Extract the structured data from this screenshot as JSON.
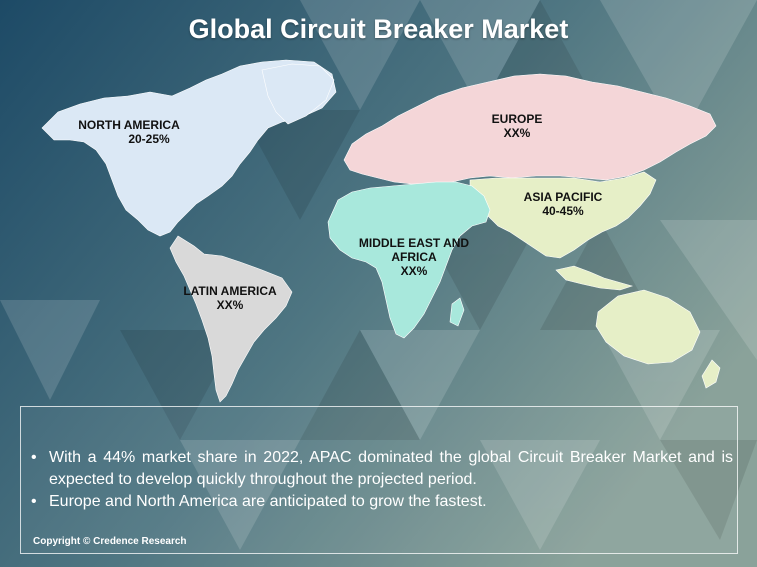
{
  "title": "Global Circuit Breaker Market",
  "colors": {
    "background_dark": "#1d4a66",
    "background_mid": "#4f7682",
    "background_light": "#8aa29a",
    "north_america": "#dbe8f5",
    "europe": "#f4d6d8",
    "asia_pacific": "#e6efc7",
    "middle_east_africa": "#a8e8dc",
    "latin_america": "#d9d9d9"
  },
  "regions": {
    "north_america": {
      "name": "NORTH AMERICA",
      "share": "20-25%"
    },
    "europe": {
      "name": "EUROPE",
      "share": "XX%"
    },
    "asia_pacific": {
      "name": "ASIA PACIFIC",
      "share": "40-45%"
    },
    "middle_east_africa": {
      "name_line1": "MIDDLE EAST AND",
      "name_line2": "AFRICA",
      "share": "XX%"
    },
    "latin_america": {
      "name": "LATIN AMERICA",
      "share": "XX%"
    }
  },
  "bullets": [
    {
      "symbol": "•",
      "text": "With a 44% market share in 2022, APAC dominated the global Circuit Breaker Market and is expected to develop quickly throughout the projected period."
    },
    {
      "symbol": "•",
      "text": "Europe and North America are anticipated to grow the fastest."
    }
  ],
  "copyright": "Copyright © Credence Research"
}
